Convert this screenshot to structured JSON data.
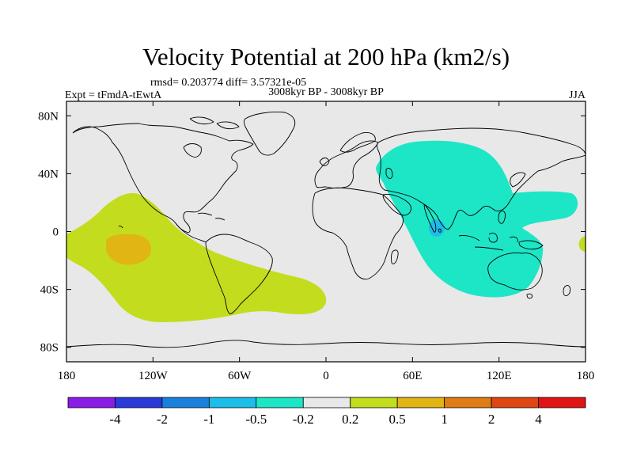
{
  "chart_data": {
    "type": "map-contour",
    "title": "Velocity Potential at 200 hPa (km2/s)",
    "subtitle_stats": "rmsd= 0.203774 diff= 3.57321e-05",
    "subtitle_period": "3008kyr BP - 3008kyr BP",
    "left_label": "Expt = tFmdA-tEwtA",
    "right_label": "JJA",
    "lon_range": [
      -180,
      180
    ],
    "lat_range": [
      -90,
      90
    ],
    "x_ticks": [
      {
        "value": -180,
        "label": "180"
      },
      {
        "value": -120,
        "label": "120W"
      },
      {
        "value": -60,
        "label": "60W"
      },
      {
        "value": 0,
        "label": "0"
      },
      {
        "value": 60,
        "label": "60E"
      },
      {
        "value": 120,
        "label": "120E"
      },
      {
        "value": 180,
        "label": "180"
      }
    ],
    "y_ticks": [
      {
        "value": 80,
        "label": "80N"
      },
      {
        "value": 40,
        "label": "40N"
      },
      {
        "value": 0,
        "label": "0"
      },
      {
        "value": -40,
        "label": "40S"
      },
      {
        "value": -80,
        "label": "80S"
      }
    ],
    "colorbar": {
      "colors": [
        "#8a1ce6",
        "#2b3ad9",
        "#1a80dd",
        "#1cbde8",
        "#1de6c7",
        "#e8e8e8",
        "#c3dc1e",
        "#e0b514",
        "#e07c14",
        "#e04514",
        "#e01414"
      ],
      "labels": [
        "-4",
        "-2",
        "-1",
        "-0.5",
        "-0.2",
        "0.2",
        "0.5",
        "1",
        "2",
        "4"
      ]
    },
    "regions": [
      {
        "level": "0.2 to 0.5",
        "color": "#c3dc1e",
        "description": "positive anomaly over tropical/southern Pacific and South America"
      },
      {
        "level": "0.5 to 1",
        "color": "#e0b514",
        "description": "maximum over central tropical Pacific"
      },
      {
        "level": "-0.5 to -0.2",
        "color": "#1de6c7",
        "description": "negative anomaly over Asia, Indian Ocean and maritime continent"
      },
      {
        "level": "-1 to -0.5",
        "color": "#1cbde8",
        "description": "minimum near southern India"
      }
    ]
  }
}
